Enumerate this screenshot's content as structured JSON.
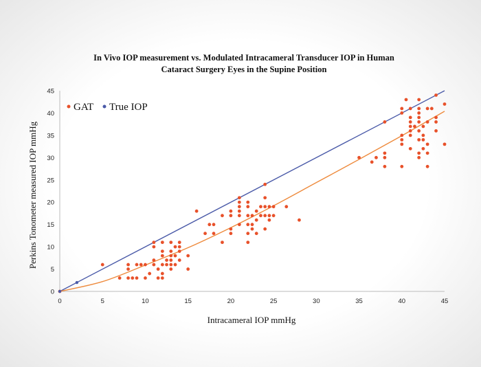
{
  "chart_data": {
    "type": "scatter",
    "title_lines": [
      "In Vivo IOP measurement vs. Modulated Intracameral Transducer IOP in Human",
      "Cataract Surgery Eyes in the Supine Position"
    ],
    "xlabel": "Intracameral IOP mmHg",
    "ylabel": "Perkins Tonometer measured IOP mmHg",
    "xlim": [
      0,
      45
    ],
    "ylim": [
      0,
      45
    ],
    "xticks": [
      0,
      5,
      10,
      15,
      20,
      25,
      30,
      35,
      40,
      45
    ],
    "yticks": [
      0,
      5,
      10,
      15,
      20,
      25,
      30,
      35,
      40,
      45
    ],
    "grid": false,
    "legend_position": "top-left",
    "series": [
      {
        "name": "GAT",
        "color": "#e8512a",
        "points": [
          [
            0,
            0
          ],
          [
            5,
            6
          ],
          [
            7,
            3
          ],
          [
            8,
            3
          ],
          [
            8,
            5
          ],
          [
            8,
            6
          ],
          [
            8.5,
            3
          ],
          [
            9,
            3
          ],
          [
            9,
            6
          ],
          [
            9.5,
            6
          ],
          [
            10,
            3
          ],
          [
            10,
            6
          ],
          [
            10.5,
            4
          ],
          [
            11,
            6
          ],
          [
            11,
            7
          ],
          [
            11,
            10
          ],
          [
            11,
            11
          ],
          [
            11.5,
            3
          ],
          [
            11.5,
            5
          ],
          [
            12,
            3
          ],
          [
            12,
            4
          ],
          [
            12,
            6
          ],
          [
            12,
            8
          ],
          [
            12,
            9
          ],
          [
            12,
            11
          ],
          [
            12.5,
            6
          ],
          [
            12.5,
            7
          ],
          [
            13,
            5
          ],
          [
            13,
            6
          ],
          [
            13,
            7
          ],
          [
            13,
            8
          ],
          [
            13,
            9
          ],
          [
            13,
            11
          ],
          [
            13.5,
            6
          ],
          [
            13.5,
            8
          ],
          [
            13.5,
            10
          ],
          [
            14,
            7
          ],
          [
            14,
            9
          ],
          [
            14,
            10
          ],
          [
            14,
            11
          ],
          [
            15,
            5
          ],
          [
            15,
            8
          ],
          [
            16,
            18
          ],
          [
            17,
            13
          ],
          [
            17.5,
            15
          ],
          [
            18,
            13
          ],
          [
            18,
            15
          ],
          [
            19,
            11
          ],
          [
            19,
            17
          ],
          [
            20,
            13
          ],
          [
            20,
            14
          ],
          [
            20,
            17
          ],
          [
            20,
            18
          ],
          [
            21,
            15
          ],
          [
            21,
            17
          ],
          [
            21,
            18
          ],
          [
            21,
            19
          ],
          [
            21,
            20
          ],
          [
            21,
            21
          ],
          [
            22,
            11
          ],
          [
            22,
            13
          ],
          [
            22,
            15
          ],
          [
            22,
            17
          ],
          [
            22,
            19
          ],
          [
            22,
            20
          ],
          [
            22.5,
            14
          ],
          [
            22.5,
            15
          ],
          [
            22.5,
            17
          ],
          [
            23,
            13
          ],
          [
            23,
            16
          ],
          [
            23,
            18
          ],
          [
            23.5,
            17
          ],
          [
            23.5,
            19
          ],
          [
            24,
            14
          ],
          [
            24,
            17
          ],
          [
            24,
            19
          ],
          [
            24,
            21
          ],
          [
            24,
            24
          ],
          [
            24.5,
            16
          ],
          [
            24.5,
            17
          ],
          [
            24.5,
            19
          ],
          [
            25,
            17
          ],
          [
            25,
            19
          ],
          [
            26.5,
            19
          ],
          [
            28,
            16
          ],
          [
            35,
            30
          ],
          [
            36.5,
            29
          ],
          [
            37,
            30
          ],
          [
            38,
            28
          ],
          [
            38,
            30
          ],
          [
            38,
            31
          ],
          [
            38,
            38
          ],
          [
            40,
            28
          ],
          [
            40,
            33
          ],
          [
            40,
            34
          ],
          [
            40,
            35
          ],
          [
            40,
            40
          ],
          [
            40,
            41
          ],
          [
            40.5,
            43
          ],
          [
            41,
            32
          ],
          [
            41,
            35
          ],
          [
            41,
            36
          ],
          [
            41,
            37
          ],
          [
            41,
            38
          ],
          [
            41,
            39
          ],
          [
            41,
            41
          ],
          [
            41.5,
            37
          ],
          [
            42,
            30
          ],
          [
            42,
            31
          ],
          [
            42,
            34
          ],
          [
            42,
            36
          ],
          [
            42,
            38
          ],
          [
            42,
            39
          ],
          [
            42,
            40
          ],
          [
            42,
            41
          ],
          [
            42,
            43
          ],
          [
            42.5,
            32
          ],
          [
            42.5,
            34
          ],
          [
            42.5,
            35
          ],
          [
            42.5,
            37
          ],
          [
            43,
            28
          ],
          [
            43,
            31
          ],
          [
            43,
            33
          ],
          [
            43,
            38
          ],
          [
            43,
            41
          ],
          [
            43.5,
            41
          ],
          [
            44,
            36
          ],
          [
            44,
            38
          ],
          [
            44,
            39
          ],
          [
            44,
            44
          ],
          [
            45,
            33
          ],
          [
            45,
            42
          ]
        ],
        "trendline": [
          [
            0,
            0
          ],
          [
            5,
            2.2
          ],
          [
            10,
            5.9
          ],
          [
            15,
            9.8
          ],
          [
            20,
            14.3
          ],
          [
            25,
            19.2
          ],
          [
            30,
            24.4
          ],
          [
            35,
            29.6
          ],
          [
            40,
            34.9
          ],
          [
            45,
            40.4
          ]
        ]
      },
      {
        "name": "True IOP",
        "color": "#4a5aa8",
        "line": [
          [
            0,
            0
          ],
          [
            45,
            45
          ]
        ],
        "markers": [
          [
            0,
            0
          ],
          [
            2,
            2
          ]
        ]
      }
    ]
  }
}
